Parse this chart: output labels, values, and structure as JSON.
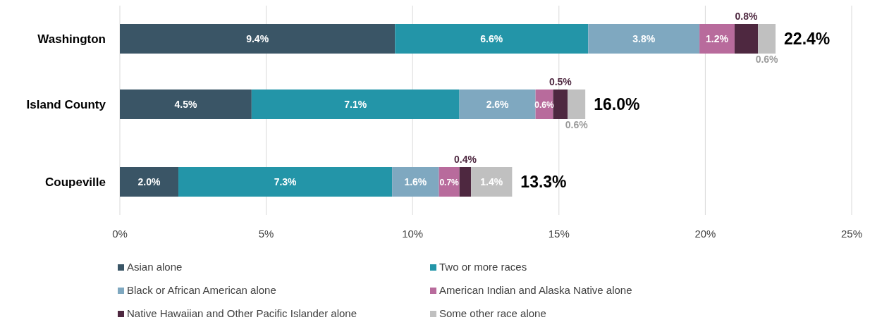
{
  "chart_data": {
    "type": "bar",
    "orientation": "horizontal",
    "stacked": true,
    "categories": [
      "Washington",
      "Island County",
      "Coupeville"
    ],
    "xlim": [
      0,
      25
    ],
    "xticks": [
      {
        "value": 0,
        "label": "0%"
      },
      {
        "value": 5,
        "label": "5%"
      },
      {
        "value": 10,
        "label": "10%"
      },
      {
        "value": 15,
        "label": "15%"
      },
      {
        "value": 20,
        "label": "20%"
      },
      {
        "value": 25,
        "label": "25%"
      }
    ],
    "grid": "x",
    "legend": "bottom",
    "totals": [
      "22.4%",
      "16.0%",
      "13.3%"
    ],
    "series": [
      {
        "name": "Asian alone",
        "color": "#3a5566",
        "values": [
          9.4,
          4.5,
          2.0
        ],
        "value_labels": [
          "9.4%",
          "4.5%",
          "2.0%"
        ]
      },
      {
        "name": "Two or more races",
        "color": "#2395a8",
        "values": [
          6.6,
          7.1,
          7.3
        ],
        "value_labels": [
          "6.6%",
          "7.1%",
          "7.3%"
        ]
      },
      {
        "name": "Black or African American alone",
        "color": "#7fa8c0",
        "values": [
          3.8,
          2.6,
          1.6
        ],
        "value_labels": [
          "3.8%",
          "2.6%",
          "1.6%"
        ]
      },
      {
        "name": "American Indian and Alaska Native alone",
        "color": "#b86b9c",
        "values": [
          1.2,
          0.6,
          0.7
        ],
        "value_labels": [
          "1.2%",
          "0.6%",
          "0.7%"
        ]
      },
      {
        "name": "Native Hawaiian and Other Pacific Islander alone",
        "color": "#4e2840",
        "values": [
          0.8,
          0.5,
          0.4
        ],
        "value_labels": [
          "0.8%",
          "0.5%",
          "0.4%"
        ]
      },
      {
        "name": "Some other race alone",
        "color": "#c0c0c0",
        "values": [
          0.6,
          0.6,
          1.4
        ],
        "value_labels": [
          "0.6%",
          "0.6%",
          "1.4%"
        ]
      }
    ]
  }
}
